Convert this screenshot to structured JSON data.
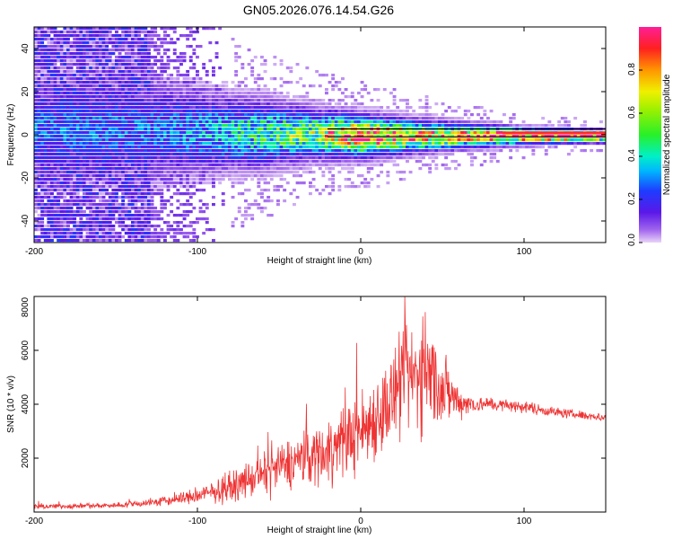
{
  "figure": {
    "title": "GN05.2026.076.14.54.G26"
  },
  "chart_data": [
    {
      "type": "heatmap",
      "title": "GN05.2026.076.14.54.G26",
      "xlabel": "Height of straight line (km)",
      "ylabel": "Frequency (Hz)",
      "xlim": [
        -200,
        150
      ],
      "ylim": [
        -50,
        50
      ],
      "xticks": [
        -200,
        -100,
        0,
        100
      ],
      "yticks": [
        -40,
        -20,
        0,
        20,
        40
      ],
      "colorbar": {
        "label": "Normalized spectral amplitude",
        "range": [
          0,
          1
        ],
        "ticks": [
          "0.0",
          "0.2",
          "0.4",
          "0.6",
          "0.8"
        ]
      },
      "ridge": {
        "description_points_height_km": [
          -130,
          -100,
          -60,
          -30,
          0,
          30,
          60,
          100,
          150
        ],
        "peak_frequency_hz": [
          3,
          2,
          1,
          1,
          0,
          0,
          0,
          0,
          0
        ],
        "spread_hz": [
          12,
          10,
          8,
          6,
          5,
          4,
          3,
          2,
          1.5
        ],
        "peak_amplitude": [
          0.25,
          0.3,
          0.45,
          0.55,
          0.95,
          0.75,
          0.8,
          0.9,
          1.0
        ]
      }
    },
    {
      "type": "line",
      "xlabel": "Height of straight line (km)",
      "ylabel": "SNR (10 * v/v)",
      "xlim": [
        -200,
        150
      ],
      "ylim": [
        0,
        8000
      ],
      "xticks": [
        -200,
        -100,
        0,
        100
      ],
      "yticks": [
        2000,
        4000,
        6000,
        8000
      ],
      "series": [
        {
          "name": "SNR",
          "color": "#ee3333",
          "envelope_x": [
            -200,
            -150,
            -120,
            -100,
            -80,
            -60,
            -40,
            -20,
            0,
            10,
            20,
            30,
            40,
            50,
            60,
            70,
            80,
            100,
            120,
            150
          ],
          "envelope_y": [
            200,
            250,
            400,
            600,
            900,
            1400,
            1900,
            2300,
            3000,
            3600,
            4200,
            5000,
            5200,
            4600,
            4100,
            4000,
            4000,
            3900,
            3700,
            3500
          ],
          "noise_amplitude": [
            80,
            80,
            150,
            250,
            400,
            600,
            800,
            1000,
            1200,
            1300,
            1500,
            1600,
            1700,
            1200,
            500,
            250,
            200,
            180,
            150,
            120
          ]
        }
      ]
    }
  ]
}
